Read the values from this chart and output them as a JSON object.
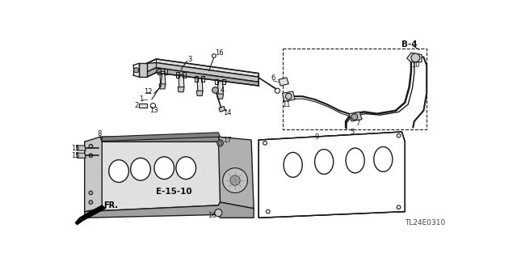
{
  "bg_color": "#ffffff",
  "line_color": "#1a1a1a",
  "text_color": "#111111",
  "gray_fill": "#c8c8c8",
  "light_gray": "#e0e0e0",
  "diagram_code": "TL24E0310",
  "label_B4": "B-4",
  "label_E1510": "E-15-10",
  "label_FR": "FR.",
  "figsize": [
    6.4,
    3.19
  ],
  "dpi": 100
}
